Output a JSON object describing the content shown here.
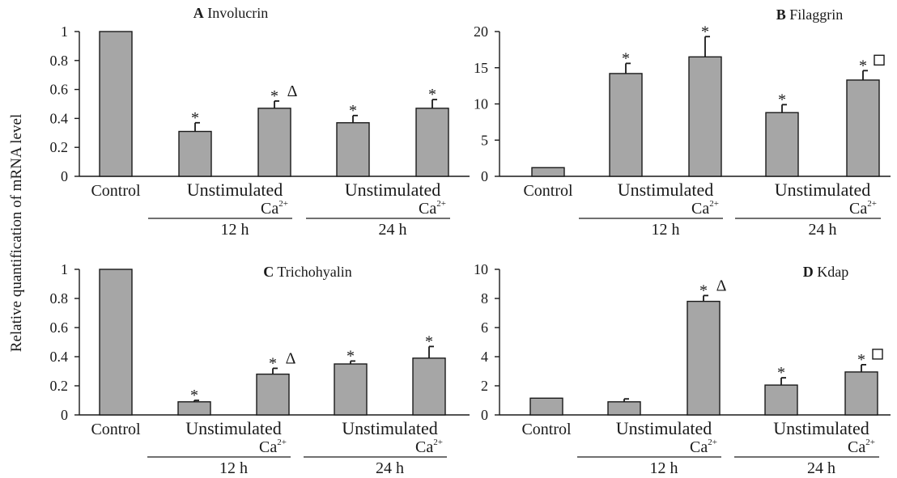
{
  "figure": {
    "ylabel": "Relative quantification of mRNA level",
    "bar_color": "#a6a6a6",
    "ink_color": "#1a1a1a"
  },
  "chart_data": [
    {
      "type": "bar",
      "panel_letter": "A",
      "title": "Involucrin",
      "categories": [
        "Control",
        "12 h Unstimulated",
        "12 h Ca2+",
        "24 h Unstimulated",
        "24 h Ca2+"
      ],
      "values": [
        1.0,
        0.31,
        0.47,
        0.37,
        0.47
      ],
      "errors": [
        0,
        0.06,
        0.05,
        0.05,
        0.06
      ],
      "markers": [
        "",
        "*",
        "* Δ",
        "*",
        "*"
      ],
      "ylim": [
        0,
        1
      ],
      "yticks": [
        "0",
        "0.2",
        "0.4",
        "0.6",
        "0.8",
        "1"
      ],
      "ytick_values": [
        0,
        0.2,
        0.4,
        0.6,
        0.8,
        1
      ],
      "xlabels": {
        "control": "Control",
        "unstim": "Unstimulated",
        "ca": "Ca",
        "ca_sup": "2+"
      },
      "groups": [
        "12 h",
        "24 h"
      ]
    },
    {
      "type": "bar",
      "panel_letter": "B",
      "title": "Filaggrin",
      "categories": [
        "Control",
        "12 h Unstimulated",
        "12 h Ca2+",
        "24 h Unstimulated",
        "24 h Ca2+"
      ],
      "values": [
        1.2,
        14.2,
        16.5,
        8.8,
        13.3
      ],
      "errors": [
        0,
        1.4,
        2.8,
        1.1,
        1.3
      ],
      "markers": [
        "",
        "*",
        "*",
        "*",
        "* □"
      ],
      "ylim": [
        0,
        20
      ],
      "yticks": [
        "0",
        "5",
        "10",
        "15",
        "20"
      ],
      "ytick_values": [
        0,
        5,
        10,
        15,
        20
      ],
      "xlabels": {
        "control": "Control",
        "unstim": "Unstimulated",
        "ca": "Ca",
        "ca_sup": "2+"
      },
      "groups": [
        "12 h",
        "24 h"
      ]
    },
    {
      "type": "bar",
      "panel_letter": "C",
      "title": "Trichohyalin",
      "categories": [
        "Control",
        "12 h Unstimulated",
        "12 h Ca2+",
        "24 h Unstimulated",
        "24 h Ca2+"
      ],
      "values": [
        1.0,
        0.09,
        0.28,
        0.35,
        0.39
      ],
      "errors": [
        0,
        0.01,
        0.04,
        0.02,
        0.08
      ],
      "markers": [
        "",
        "*",
        "* Δ",
        "*",
        "*"
      ],
      "ylim": [
        0,
        1
      ],
      "yticks": [
        "0",
        "0.2",
        "0.4",
        "0.6",
        "0.8",
        "1"
      ],
      "ytick_values": [
        0,
        0.2,
        0.4,
        0.6,
        0.8,
        1
      ],
      "xlabels": {
        "control": "Control",
        "unstim": "Unstimulated",
        "ca": "Ca",
        "ca_sup": "2+"
      },
      "groups": [
        "12 h",
        "24 h"
      ]
    },
    {
      "type": "bar",
      "panel_letter": "D",
      "title": "Kdap",
      "categories": [
        "Control",
        "12 h Unstimulated",
        "12 h Ca2+",
        "24 h Unstimulated",
        "24 h Ca2+"
      ],
      "values": [
        1.15,
        0.9,
        7.8,
        2.05,
        2.95
      ],
      "errors": [
        0,
        0.2,
        0.4,
        0.5,
        0.5
      ],
      "markers": [
        "",
        "",
        "* Δ",
        "*",
        "* □"
      ],
      "ylim": [
        0,
        10
      ],
      "yticks": [
        "0",
        "2",
        "4",
        "6",
        "8",
        "10"
      ],
      "ytick_values": [
        0,
        2,
        4,
        6,
        8,
        10
      ],
      "xlabels": {
        "control": "Control",
        "unstim": "Unstimulated",
        "ca": "Ca",
        "ca_sup": "2+"
      },
      "groups": [
        "12 h",
        "24 h"
      ]
    }
  ]
}
